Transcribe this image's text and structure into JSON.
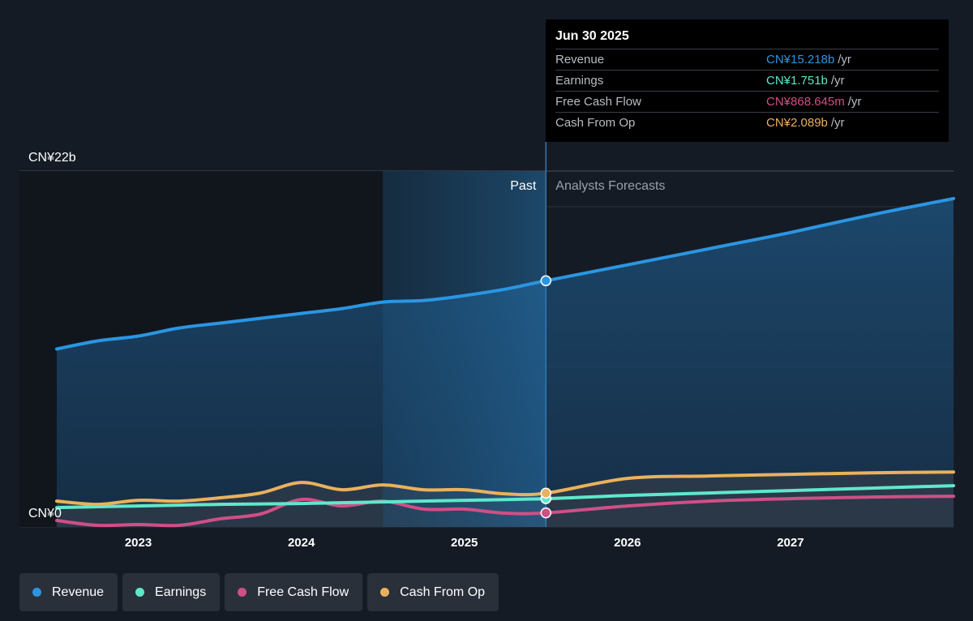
{
  "colors": {
    "revenue": "#2a96e2",
    "earnings": "#5ee8cb",
    "free_cash_flow": "#cf4f86",
    "cash_from_op": "#eab15c",
    "background": "#151b24"
  },
  "tooltip": {
    "date": "Jun 30 2025",
    "rows": [
      {
        "name": "Revenue",
        "value": "CN¥15.218b",
        "unit": "/yr"
      },
      {
        "name": "Earnings",
        "value": "CN¥1.751b",
        "unit": "/yr"
      },
      {
        "name": "Free Cash Flow",
        "value": "CN¥868.645m",
        "unit": "/yr"
      },
      {
        "name": "Cash From Op",
        "value": "CN¥2.089b",
        "unit": "/yr"
      }
    ]
  },
  "legend": [
    {
      "label": "Revenue"
    },
    {
      "label": "Earnings"
    },
    {
      "label": "Free Cash Flow"
    },
    {
      "label": "Cash From Op"
    }
  ],
  "chart_data": {
    "type": "line",
    "y_top_label": "CN¥22b",
    "y_bottom_label": "CN¥0",
    "past_label": "Past",
    "forecast_label": "Analysts Forecasts",
    "divider_x": 2025.5,
    "past_shade_start": 2024.5,
    "xlim": [
      2022.5,
      2028.0
    ],
    "ylim": [
      0,
      22
    ],
    "x_ticks": [
      2023,
      2024,
      2025,
      2026,
      2027
    ],
    "x_tick_labels": [
      "2023",
      "2024",
      "2025",
      "2026",
      "2027"
    ],
    "series": [
      {
        "name": "Revenue",
        "key": "revenue",
        "points": [
          [
            2022.5,
            11.0
          ],
          [
            2022.75,
            11.5
          ],
          [
            2023.0,
            11.8
          ],
          [
            2023.25,
            12.3
          ],
          [
            2023.5,
            12.6
          ],
          [
            2023.75,
            12.9
          ],
          [
            2024.0,
            13.2
          ],
          [
            2024.25,
            13.5
          ],
          [
            2024.5,
            13.9
          ],
          [
            2024.75,
            14.0
          ],
          [
            2025.0,
            14.3
          ],
          [
            2025.25,
            14.7
          ],
          [
            2025.5,
            15.22
          ],
          [
            2026.0,
            16.2
          ],
          [
            2026.5,
            17.2
          ],
          [
            2027.0,
            18.2
          ],
          [
            2027.5,
            19.3
          ],
          [
            2028.0,
            20.3
          ]
        ]
      },
      {
        "name": "Earnings",
        "key": "earnings",
        "points": [
          [
            2022.5,
            1.2
          ],
          [
            2023.0,
            1.3
          ],
          [
            2023.5,
            1.4
          ],
          [
            2024.0,
            1.45
          ],
          [
            2024.5,
            1.55
          ],
          [
            2025.0,
            1.65
          ],
          [
            2025.5,
            1.75
          ],
          [
            2026.0,
            1.95
          ],
          [
            2026.5,
            2.1
          ],
          [
            2027.0,
            2.25
          ],
          [
            2027.5,
            2.4
          ],
          [
            2028.0,
            2.55
          ]
        ]
      },
      {
        "name": "Free Cash Flow",
        "key": "free_cash_flow",
        "points": [
          [
            2022.5,
            0.4
          ],
          [
            2022.75,
            0.1
          ],
          [
            2023.0,
            0.15
          ],
          [
            2023.25,
            0.1
          ],
          [
            2023.5,
            0.5
          ],
          [
            2023.75,
            0.8
          ],
          [
            2024.0,
            1.7
          ],
          [
            2024.25,
            1.3
          ],
          [
            2024.5,
            1.6
          ],
          [
            2024.75,
            1.1
          ],
          [
            2025.0,
            1.1
          ],
          [
            2025.25,
            0.85
          ],
          [
            2025.5,
            0.87
          ],
          [
            2026.0,
            1.3
          ],
          [
            2026.5,
            1.6
          ],
          [
            2027.0,
            1.75
          ],
          [
            2027.5,
            1.85
          ],
          [
            2028.0,
            1.9
          ]
        ]
      },
      {
        "name": "Cash From Op",
        "key": "cash_from_op",
        "points": [
          [
            2022.5,
            1.6
          ],
          [
            2022.75,
            1.4
          ],
          [
            2023.0,
            1.65
          ],
          [
            2023.25,
            1.6
          ],
          [
            2023.5,
            1.8
          ],
          [
            2023.75,
            2.1
          ],
          [
            2024.0,
            2.75
          ],
          [
            2024.25,
            2.3
          ],
          [
            2024.5,
            2.6
          ],
          [
            2024.75,
            2.3
          ],
          [
            2025.0,
            2.3
          ],
          [
            2025.25,
            2.05
          ],
          [
            2025.5,
            2.09
          ],
          [
            2026.0,
            3.0
          ],
          [
            2026.5,
            3.15
          ],
          [
            2027.0,
            3.25
          ],
          [
            2027.5,
            3.35
          ],
          [
            2028.0,
            3.4
          ]
        ]
      }
    ]
  }
}
